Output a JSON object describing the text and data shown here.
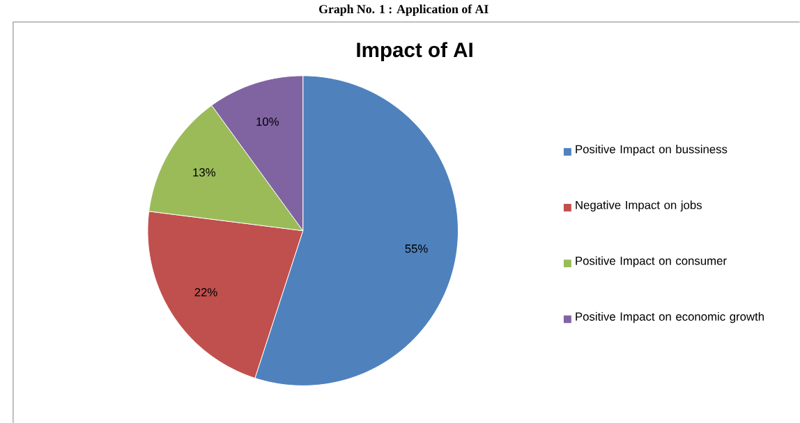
{
  "chart_data": {
    "type": "pie",
    "title": "Impact of AI",
    "annotations": [
      "Graph No. 1 : Application of AI"
    ],
    "categories": [
      "Positive Impact on bussiness",
      "Negative Impact on jobs",
      "Positive Impact on consumer",
      "Positive Impact on economic growth"
    ],
    "values": [
      55,
      22,
      13,
      10
    ],
    "value_labels": [
      "55%",
      "22%",
      "13%",
      "10%"
    ],
    "colors": [
      "#4f81bd",
      "#c0504d",
      "#9bbb59",
      "#8064a2"
    ],
    "legend": "right"
  }
}
